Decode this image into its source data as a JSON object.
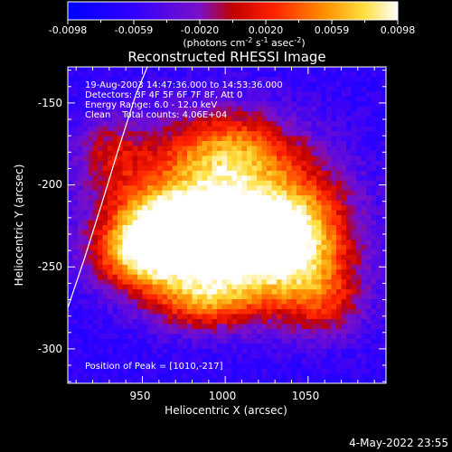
{
  "chart_data": {
    "type": "heatmap",
    "title": "Reconstructed RHESSI Image",
    "xlabel": "Heliocentric X (arcsec)",
    "ylabel": "Heliocentric Y (arcsec)",
    "xlim": [
      905,
      1097
    ],
    "ylim": [
      -321,
      -128
    ],
    "x_ticks": [
      950,
      1000,
      1050
    ],
    "y_ticks": [
      -150,
      -200,
      -250,
      -300
    ],
    "colorbar": {
      "ticks": [
        "-0.0098",
        "-0.0059",
        "-0.0020",
        "0.0020",
        "0.0059",
        "0.0098"
      ],
      "range": [
        -0.0098,
        0.0098
      ],
      "label_parts": [
        "(photons cm",
        "-2",
        " s",
        "-1",
        " asec",
        "-2",
        ")"
      ]
    },
    "info_lines": [
      "19-Aug-2003 14:47:36.000 to 14:53:36.000",
      "Detectors: 3F 4F 5F 6F 7F 8F, Att 0",
      "Energy Range: 6.0 - 12.0 keV",
      "Clean    Total counts: 4.06E+04"
    ],
    "peak_text": "Position of Peak = [1010,-217]",
    "peak": {
      "x": 1010,
      "y": -217
    },
    "limb_curve": [
      [
        905,
        -275
      ],
      [
        915,
        -245
      ],
      [
        925,
        -213
      ],
      [
        935,
        -180
      ],
      [
        946,
        -145
      ],
      [
        953,
        -128
      ]
    ],
    "date_stamp": "4-May-2022 23:55",
    "source_blobs": [
      {
        "x": 1000,
        "y": -212,
        "sx": 44,
        "sy": 34,
        "v": 0.0098
      },
      {
        "x": 985,
        "y": -232,
        "sx": 30,
        "sy": 22,
        "v": 0.0075
      },
      {
        "x": 1020,
        "y": -245,
        "sx": 34,
        "sy": 24,
        "v": 0.0068
      },
      {
        "x": 958,
        "y": -228,
        "sx": 22,
        "sy": 18,
        "v": 0.0062
      },
      {
        "x": 945,
        "y": -245,
        "sx": 20,
        "sy": 15,
        "v": 0.0046
      },
      {
        "x": 1045,
        "y": -230,
        "sx": 22,
        "sy": 24,
        "v": 0.0056
      },
      {
        "x": 1002,
        "y": -178,
        "sx": 26,
        "sy": 16,
        "v": 0.0052
      },
      {
        "x": 985,
        "y": -272,
        "sx": 22,
        "sy": 12,
        "v": 0.0043
      },
      {
        "x": 1060,
        "y": -272,
        "sx": 18,
        "sy": 16,
        "v": 0.0032
      },
      {
        "x": 930,
        "y": -180,
        "sx": 16,
        "sy": 16,
        "v": 0.0024
      }
    ],
    "background_level": -0.0062
  }
}
